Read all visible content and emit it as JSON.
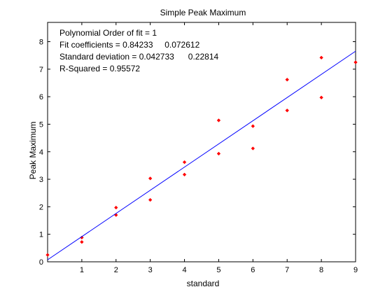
{
  "chart_data": {
    "type": "scatter",
    "title": "Simple Peak Maximum",
    "xlabel": "standard",
    "ylabel": "Peak Maximum",
    "xlim": [
      0,
      9
    ],
    "ylim": [
      0,
      8.7
    ],
    "xticks": [
      1,
      2,
      3,
      4,
      5,
      6,
      7,
      8,
      9
    ],
    "yticks": [
      0,
      1,
      2,
      3,
      4,
      5,
      6,
      7,
      8
    ],
    "grid": false,
    "legend": "none",
    "series": [
      {
        "kind": "scatter",
        "color": "#ff0000",
        "x": [
          0,
          1,
          1,
          2,
          2,
          3,
          3,
          4,
          4,
          5,
          5,
          6,
          6,
          7,
          7,
          8,
          8,
          9
        ],
        "y": [
          0.25,
          0.88,
          0.72,
          1.97,
          1.7,
          3.03,
          2.25,
          3.62,
          3.17,
          5.14,
          3.93,
          4.93,
          4.12,
          6.62,
          5.5,
          7.42,
          5.97,
          7.25
        ]
      },
      {
        "kind": "line",
        "color": "#0000ff",
        "x": [
          0,
          9
        ],
        "y": [
          0.0726,
          7.6536
        ]
      }
    ],
    "annotations": [
      "Polynomial Order of fit = 1",
      "Fit coefficients = 0.84233     0.072612",
      "Standard deviation = 0.042733      0.22814",
      "R-Squared = 0.95572"
    ]
  }
}
